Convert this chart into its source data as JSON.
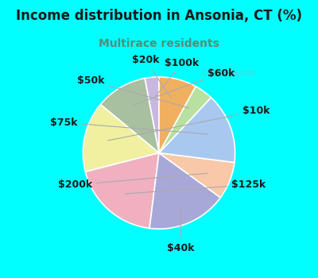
{
  "title": "Income distribution in Ansonia, CT (%)",
  "subtitle": "Multirace residents",
  "title_color": "#1a1a1a",
  "subtitle_color": "#5a8a7a",
  "background_cyan": "#00FFFF",
  "background_inner": "#e8f4ec",
  "watermark": "City-Data.com",
  "labels": [
    "$100k",
    "$60k",
    "$10k",
    "$125k",
    "$40k",
    "$200k",
    "$75k",
    "$50k",
    "$20k"
  ],
  "sizes": [
    3,
    11,
    15,
    19,
    17,
    8,
    15,
    4,
    8
  ],
  "colors": [
    "#c8b8e0",
    "#a8c0a0",
    "#f0f0a0",
    "#f0b0c0",
    "#a8a8d8",
    "#f8c8a8",
    "#a8c8f0",
    "#b8e0a0",
    "#f0b060"
  ],
  "startangle": 90,
  "label_fontsize": 9,
  "label_color": "#1a1a1a",
  "figsize": [
    4.0,
    3.5
  ],
  "dpi": 100,
  "title_fontsize": 12,
  "subtitle_fontsize": 10
}
